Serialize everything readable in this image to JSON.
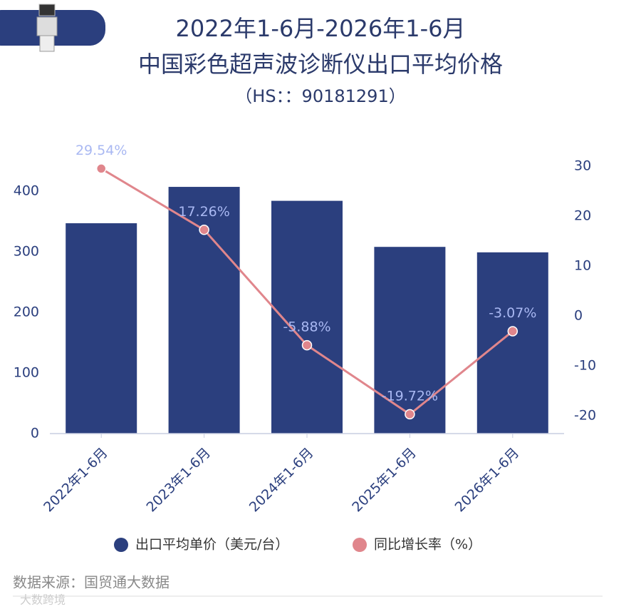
{
  "chart_data": {
    "type": "bar",
    "title": "2022年1-6月-2026年1-6月",
    "subtitle": "中国彩色超声波诊断仪出口平均价格",
    "code": "（HS：：90181291）",
    "source": "数据来源：国贸通大数据",
    "watermark": "大数跨境",
    "categories": [
      "2022年1-6月",
      "2023年1-6月",
      "2024年1-6月",
      "2025年1-6月",
      "2026年1-6月"
    ],
    "series": [
      {
        "name": "出口平均单价（美元/台）",
        "type": "bar",
        "color": "#2b3f7e",
        "values": [
          347,
          407,
          384,
          308,
          299
        ]
      },
      {
        "name": "同比增长率（%）",
        "type": "line",
        "axis": "y2",
        "color": "#e0868c",
        "values": [
          29.54,
          17.26,
          -5.88,
          -19.72,
          -3.07
        ],
        "value_labels": [
          "29.54%",
          "17.26%",
          "-5.88%",
          "-19.72%",
          "-3.07%"
        ]
      }
    ],
    "ylim": [
      0,
      450
    ],
    "yticks": [
      0,
      100,
      200,
      300,
      400
    ],
    "y2lim": [
      -23.6,
      31.1
    ],
    "y2ticks": [
      -20,
      -10,
      0,
      10,
      20,
      30
    ]
  }
}
